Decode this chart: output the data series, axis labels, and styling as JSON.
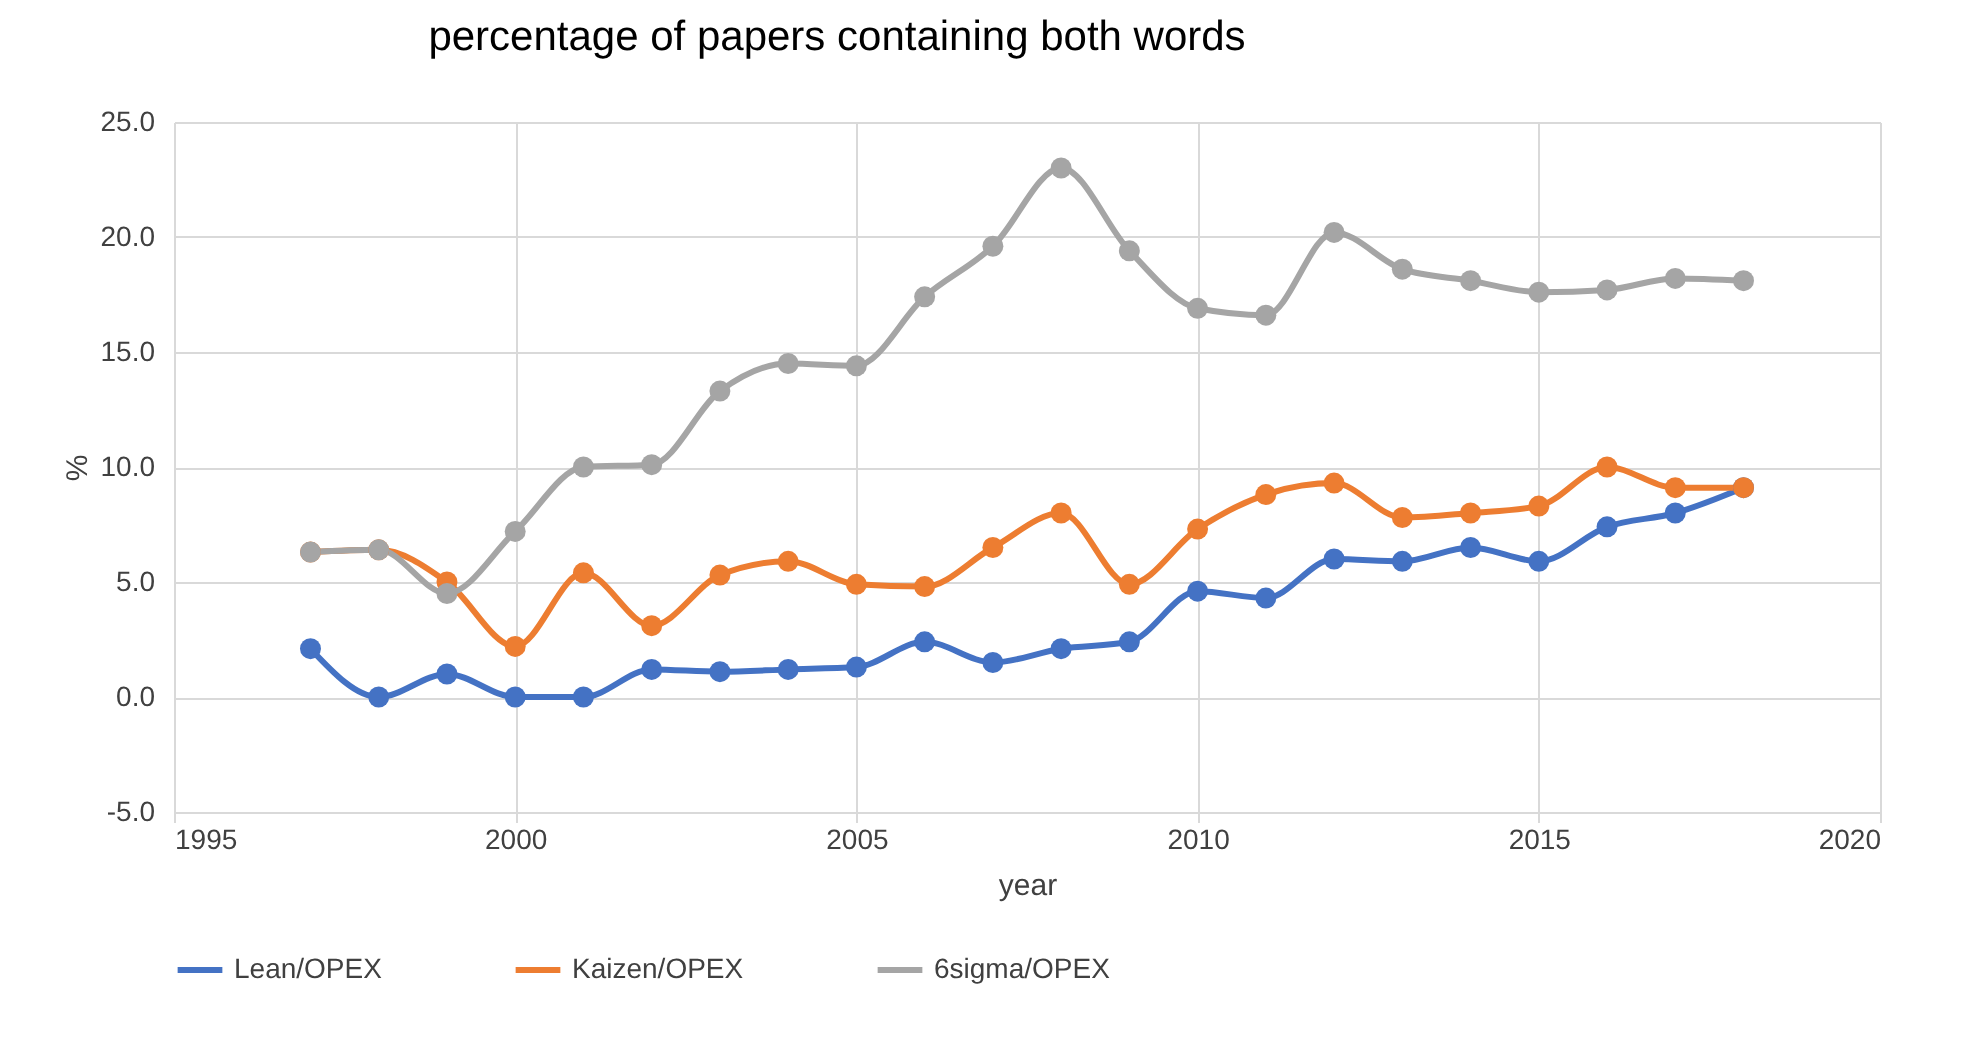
{
  "chart_data": {
    "type": "line",
    "title": "percentage of papers containing both words",
    "xlabel": "year",
    "ylabel": "%",
    "x": [
      1997,
      1998,
      1999,
      2000,
      2001,
      2002,
      2003,
      2004,
      2005,
      2006,
      2007,
      2008,
      2009,
      2010,
      2011,
      2012,
      2013,
      2014,
      2015,
      2016,
      2017,
      2018
    ],
    "series": [
      {
        "name": "Lean/OPEX",
        "color": "#4472c4",
        "values": [
          2.1,
          0,
          1.0,
          0,
          0,
          1.2,
          1.1,
          1.2,
          1.3,
          2.4,
          1.5,
          2.1,
          2.4,
          4.6,
          4.3,
          6.0,
          5.9,
          6.5,
          5.9,
          7.4,
          8.0,
          9.1
        ]
      },
      {
        "name": "Kaizen/OPEX",
        "color": "#ed7d31",
        "values": [
          6.3,
          6.4,
          5.0,
          2.2,
          5.4,
          3.1,
          5.3,
          5.9,
          4.9,
          4.8,
          6.5,
          8.0,
          4.9,
          7.3,
          8.8,
          9.3,
          7.8,
          8.0,
          8.3,
          10.0,
          9.1,
          9.1
        ]
      },
      {
        "name": "6sigma/OPEX",
        "color": "#a5a5a5",
        "values": [
          6.3,
          6.4,
          4.5,
          7.2,
          10.0,
          10.1,
          13.3,
          14.5,
          14.4,
          17.4,
          19.6,
          23.0,
          19.4,
          16.9,
          16.6,
          20.2,
          18.6,
          18.1,
          17.6,
          17.7,
          18.2,
          18.1
        ]
      }
    ],
    "xlim": [
      1995,
      2020
    ],
    "xticks": [
      1995,
      2000,
      2005,
      2010,
      2015,
      2020
    ],
    "ylim": [
      -5,
      25
    ],
    "yticks": [
      {
        "value": -5,
        "label": "-5.0"
      },
      {
        "value": 0,
        "label": "0.0"
      },
      {
        "value": 5,
        "label": "5.0"
      },
      {
        "value": 10,
        "label": "10.0"
      },
      {
        "value": 15,
        "label": "15.0"
      },
      {
        "value": 20,
        "label": "20.0"
      },
      {
        "value": 25,
        "label": "25.0"
      }
    ],
    "grid": true,
    "legend": "bottom",
    "marker": "circle",
    "line_style": "solid"
  }
}
